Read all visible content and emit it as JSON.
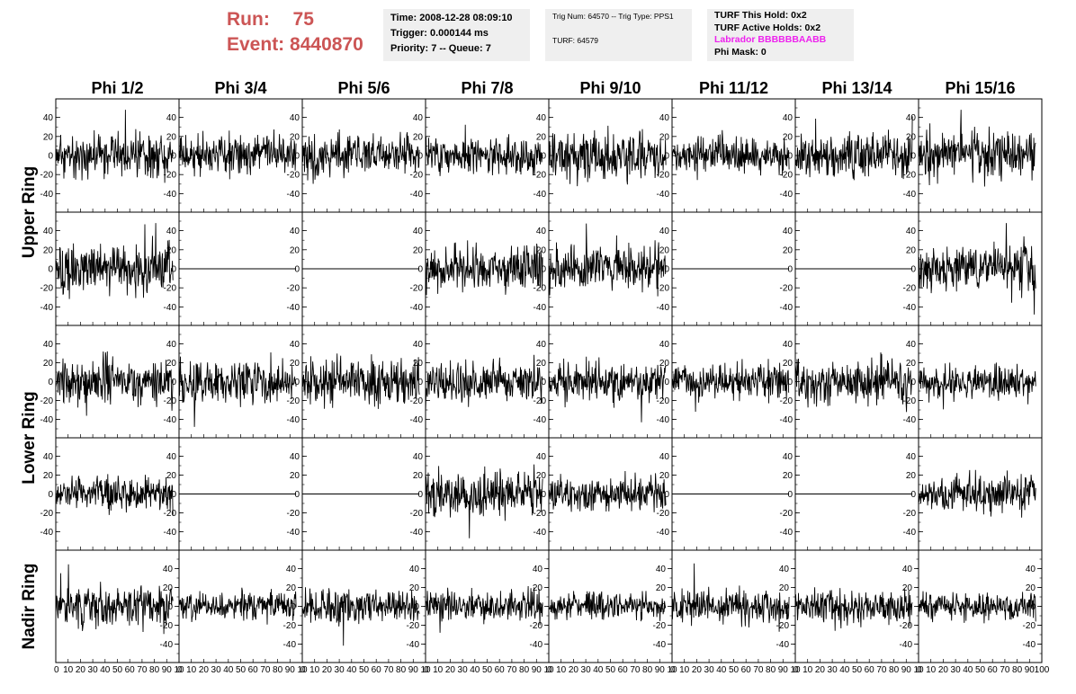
{
  "header": {
    "run_label": "Run:",
    "run_value": "75",
    "event_label": "Event:",
    "event_value": "8440870"
  },
  "info_box_1": {
    "time": "Time: 2008-12-28 08:09:10",
    "trigger": "Trigger: 0.000144 ms",
    "priority": "Priority: 7 -- Queue: 7"
  },
  "info_box_2": {
    "trig": "Trig Num: 64570 -- Trig Type: PPS1",
    "turf": "TURF: 64579"
  },
  "info_box_3": {
    "this_hold": "TURF This Hold: 0x2",
    "active_holds": "TURF Active Holds: 0x2",
    "labrador": "Labrador BBBBBBAABB",
    "phi_mask": "Phi Mask: 0"
  },
  "colors": {
    "run_text": "#cc5555",
    "labrador_text": "#ee22ee",
    "info_bg": "#efefef",
    "trace": "#000000"
  },
  "chart_data": {
    "type": "line",
    "column_titles": [
      "Phi 1/2",
      "Phi 3/4",
      "Phi 5/6",
      "Phi 7/8",
      "Phi 9/10",
      "Phi 11/12",
      "Phi 13/14",
      "Phi 15/16"
    ],
    "row_groups": [
      {
        "label": "Upper Ring",
        "rows": [
          0,
          1
        ]
      },
      {
        "label": "Lower Ring",
        "rows": [
          2,
          3
        ]
      },
      {
        "label": "Nadir Ring",
        "rows": [
          4
        ]
      }
    ],
    "xlim": [
      0,
      100
    ],
    "ylim": [
      -50,
      50
    ],
    "x_ticks": [
      0,
      10,
      20,
      30,
      40,
      50,
      60,
      70,
      80,
      90,
      100
    ],
    "x_tick_labels_by_column": [
      [
        "0",
        "10",
        "20",
        "30",
        "40",
        "50",
        "60",
        "70",
        "80",
        "90",
        "10"
      ],
      [
        "0",
        "10",
        "20",
        "30",
        "40",
        "50",
        "60",
        "70",
        "80",
        "90",
        "10"
      ],
      [
        "0",
        "10",
        "20",
        "30",
        "40",
        "50",
        "60",
        "70",
        "80",
        "90",
        "10"
      ],
      [
        "0",
        "10",
        "20",
        "30",
        "40",
        "50",
        "60",
        "70",
        "80",
        "90",
        "10"
      ],
      [
        "0",
        "10",
        "20",
        "30",
        "40",
        "50",
        "60",
        "70",
        "80",
        "90",
        "10"
      ],
      [
        "0",
        "10",
        "20",
        "30",
        "40",
        "50",
        "60",
        "70",
        "80",
        "90",
        "10"
      ],
      [
        "0",
        "10",
        "20",
        "30",
        "40",
        "50",
        "60",
        "70",
        "80",
        "90",
        "10"
      ],
      [
        "0",
        "10",
        "20",
        "30",
        "40",
        "50",
        "60",
        "70",
        "80",
        "90",
        "100"
      ]
    ],
    "y_ticks": [
      -40,
      -20,
      0,
      20,
      40
    ],
    "y_tick_labels": [
      "-40",
      "-20",
      "0",
      "20",
      "40"
    ],
    "axis_side_by_row": [
      "left",
      "left",
      "left",
      "left",
      "right"
    ],
    "samples_per_trace": 260,
    "x_max_by_column": [
      95,
      95,
      95,
      95,
      95,
      95,
      95,
      95
    ],
    "traces": [
      {
        "row": 0,
        "col": 0,
        "flat": false,
        "amp": 14,
        "seed": 11
      },
      {
        "row": 0,
        "col": 1,
        "flat": false,
        "amp": 13,
        "seed": 12
      },
      {
        "row": 0,
        "col": 2,
        "flat": false,
        "amp": 14,
        "seed": 13
      },
      {
        "row": 0,
        "col": 3,
        "flat": false,
        "amp": 11,
        "seed": 14
      },
      {
        "row": 0,
        "col": 4,
        "flat": false,
        "amp": 15,
        "seed": 15
      },
      {
        "row": 0,
        "col": 5,
        "flat": false,
        "amp": 12,
        "seed": 16
      },
      {
        "row": 0,
        "col": 6,
        "flat": false,
        "amp": 13,
        "seed": 17
      },
      {
        "row": 0,
        "col": 7,
        "flat": false,
        "amp": 15,
        "seed": 18
      },
      {
        "row": 1,
        "col": 0,
        "flat": false,
        "amp": 16,
        "seed": 21
      },
      {
        "row": 1,
        "col": 1,
        "flat": true,
        "amp": 0,
        "seed": 22
      },
      {
        "row": 1,
        "col": 2,
        "flat": true,
        "amp": 0,
        "seed": 23
      },
      {
        "row": 1,
        "col": 3,
        "flat": false,
        "amp": 15,
        "seed": 24
      },
      {
        "row": 1,
        "col": 4,
        "flat": false,
        "amp": 14,
        "seed": 25
      },
      {
        "row": 1,
        "col": 5,
        "flat": true,
        "amp": 0,
        "seed": 26
      },
      {
        "row": 1,
        "col": 6,
        "flat": true,
        "amp": 0,
        "seed": 27
      },
      {
        "row": 1,
        "col": 7,
        "flat": false,
        "amp": 15,
        "seed": 28
      },
      {
        "row": 2,
        "col": 0,
        "flat": false,
        "amp": 15,
        "seed": 31
      },
      {
        "row": 2,
        "col": 1,
        "flat": false,
        "amp": 14,
        "seed": 32
      },
      {
        "row": 2,
        "col": 2,
        "flat": false,
        "amp": 15,
        "seed": 33
      },
      {
        "row": 2,
        "col": 3,
        "flat": false,
        "amp": 13,
        "seed": 34
      },
      {
        "row": 2,
        "col": 4,
        "flat": false,
        "amp": 13,
        "seed": 35
      },
      {
        "row": 2,
        "col": 5,
        "flat": false,
        "amp": 12,
        "seed": 36
      },
      {
        "row": 2,
        "col": 6,
        "flat": false,
        "amp": 14,
        "seed": 37
      },
      {
        "row": 2,
        "col": 7,
        "flat": false,
        "amp": 11,
        "seed": 38
      },
      {
        "row": 3,
        "col": 0,
        "flat": false,
        "amp": 11,
        "seed": 41
      },
      {
        "row": 3,
        "col": 1,
        "flat": true,
        "amp": 0,
        "seed": 42
      },
      {
        "row": 3,
        "col": 2,
        "flat": true,
        "amp": 0,
        "seed": 43
      },
      {
        "row": 3,
        "col": 3,
        "flat": false,
        "amp": 15,
        "seed": 44
      },
      {
        "row": 3,
        "col": 4,
        "flat": false,
        "amp": 11,
        "seed": 45
      },
      {
        "row": 3,
        "col": 5,
        "flat": true,
        "amp": 0,
        "seed": 46
      },
      {
        "row": 3,
        "col": 6,
        "flat": true,
        "amp": 0,
        "seed": 47
      },
      {
        "row": 3,
        "col": 7,
        "flat": false,
        "amp": 13,
        "seed": 48
      },
      {
        "row": 4,
        "col": 0,
        "flat": false,
        "amp": 13,
        "seed": 51
      },
      {
        "row": 4,
        "col": 1,
        "flat": false,
        "amp": 9,
        "seed": 52
      },
      {
        "row": 4,
        "col": 2,
        "flat": false,
        "amp": 12,
        "seed": 53
      },
      {
        "row": 4,
        "col": 3,
        "flat": false,
        "amp": 10,
        "seed": 54
      },
      {
        "row": 4,
        "col": 4,
        "flat": false,
        "amp": 9,
        "seed": 55
      },
      {
        "row": 4,
        "col": 5,
        "flat": false,
        "amp": 11,
        "seed": 56
      },
      {
        "row": 4,
        "col": 6,
        "flat": false,
        "amp": 11,
        "seed": 57
      },
      {
        "row": 4,
        "col": 7,
        "flat": false,
        "amp": 9,
        "seed": 58
      }
    ]
  }
}
